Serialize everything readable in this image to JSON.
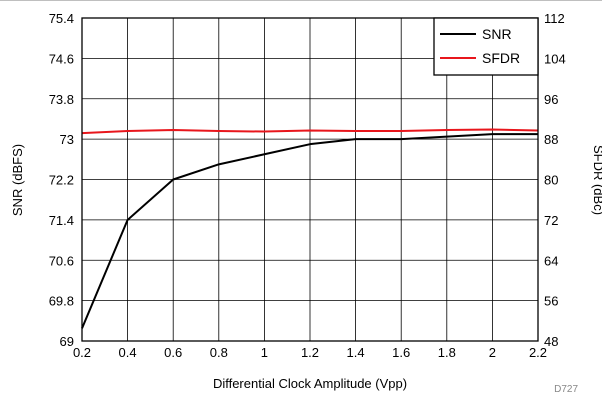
{
  "chart_data": {
    "type": "line",
    "title": "",
    "xlabel": "Differential Clock Amplitude (Vpp)",
    "ylabel": "SNR (dBFS)",
    "y2label": "SFDR (dBc)",
    "figure_id": "D727",
    "xlim": [
      0.2,
      2.2
    ],
    "ylim": [
      69,
      75.4
    ],
    "y2lim": [
      48,
      112
    ],
    "grid": true,
    "legend_position": "top-right",
    "x_ticks": [
      "0.2",
      "0.4",
      "0.6",
      "0.8",
      "1",
      "1.2",
      "1.4",
      "1.6",
      "1.8",
      "2",
      "2.2"
    ],
    "y_ticks": [
      "69",
      "69.8",
      "70.6",
      "71.4",
      "72.2",
      "73",
      "73.8",
      "74.6",
      "75.4"
    ],
    "y2_ticks": [
      "48",
      "56",
      "64",
      "72",
      "80",
      "88",
      "96",
      "104",
      "112"
    ],
    "series": [
      {
        "name": "SNR",
        "axis": "left",
        "color": "#000000",
        "x": [
          0.2,
          0.4,
          0.6,
          0.8,
          1.0,
          1.2,
          1.4,
          1.6,
          1.8,
          2.0,
          2.2
        ],
        "y": [
          69.25,
          71.4,
          72.2,
          72.5,
          72.7,
          72.9,
          73.0,
          73.0,
          73.05,
          73.1,
          73.1
        ]
      },
      {
        "name": "SFDR",
        "axis": "right",
        "color": "#e8161c",
        "x": [
          0.2,
          0.4,
          0.6,
          0.8,
          1.0,
          1.2,
          1.4,
          1.6,
          1.8,
          2.0,
          2.2
        ],
        "y": [
          89.2,
          89.6,
          89.8,
          89.6,
          89.5,
          89.7,
          89.6,
          89.6,
          89.8,
          89.9,
          89.7
        ]
      }
    ]
  }
}
